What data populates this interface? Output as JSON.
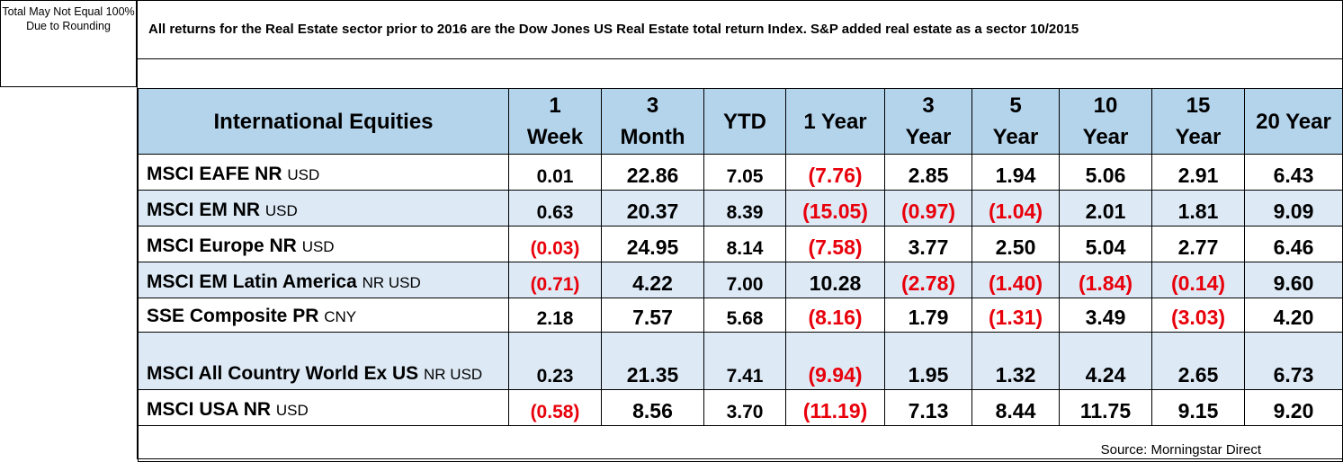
{
  "note": "Total May Not Equal 100% Due to Rounding",
  "disclaimer": "All returns for the Real Estate sector prior to 2016 are the Dow Jones US Real Estate total return Index. S&P added real estate as a sector 10/2015",
  "table": {
    "title": "International Equities",
    "columns": [
      "1 Week",
      "3 Month",
      "YTD",
      "1 Year",
      "3 Year",
      "5 Year",
      "10 Year",
      "15 Year",
      "20 Year"
    ],
    "rows": [
      {
        "name": "MSCI EAFE NR",
        "unit": "USD",
        "values": [
          "0.01",
          "22.86",
          "7.05",
          "(7.76)",
          "2.85",
          "1.94",
          "5.06",
          "2.91",
          "6.43"
        ]
      },
      {
        "name": "MSCI EM NR",
        "unit": "USD",
        "values": [
          "0.63",
          "20.37",
          "8.39",
          "(15.05)",
          "(0.97)",
          "(1.04)",
          "2.01",
          "1.81",
          "9.09"
        ]
      },
      {
        "name": "MSCI Europe NR",
        "unit": "USD",
        "values": [
          "(0.03)",
          "24.95",
          "8.14",
          "(7.58)",
          "3.77",
          "2.50",
          "5.04",
          "2.77",
          "6.46"
        ]
      },
      {
        "name": "MSCI EM Latin America",
        "unit": "NR USD",
        "values": [
          "(0.71)",
          "4.22",
          "7.00",
          "10.28",
          "(2.78)",
          "(1.40)",
          "(1.84)",
          "(0.14)",
          "9.60"
        ]
      },
      {
        "name": "SSE Composite PR",
        "unit": "CNY",
        "values": [
          "2.18",
          "7.57",
          "5.68",
          "(8.16)",
          "1.79",
          "(1.31)",
          "3.49",
          "(3.03)",
          "4.20"
        ]
      },
      {
        "name": "MSCI All Country World Ex US",
        "unit": "NR USD",
        "values": [
          "0.23",
          "21.35",
          "7.41",
          "(9.94)",
          "1.95",
          "1.32",
          "4.24",
          "2.65",
          "6.73"
        ]
      },
      {
        "name": "MSCI USA NR",
        "unit": "USD",
        "values": [
          "(0.58)",
          "8.56",
          "3.70",
          "(11.19)",
          "7.13",
          "8.44",
          "11.75",
          "9.15",
          "9.20"
        ]
      }
    ],
    "source": "Source: Morningstar Direct"
  },
  "colors": {
    "header_bg": "#b4d4ec",
    "shade_bg": "#ddeaf6",
    "negative": "#e8000b"
  }
}
